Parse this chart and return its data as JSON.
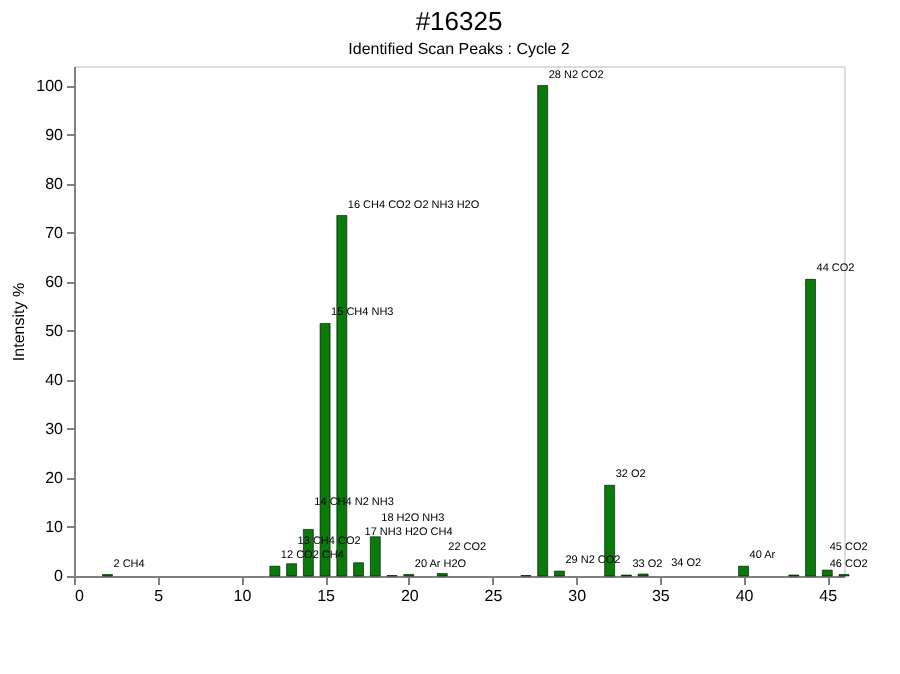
{
  "chart_data": {
    "type": "bar",
    "title": "#16325",
    "subtitle": "Identified Scan Peaks : Cycle 2",
    "ylabel": "Intensity %",
    "x": [
      2,
      12,
      13,
      14,
      15,
      16,
      17,
      18,
      19,
      20,
      22,
      27,
      28,
      29,
      32,
      33,
      34,
      40,
      43,
      44,
      45,
      46
    ],
    "series": [
      {
        "color": "#0a7a0a",
        "values": [
          0.3,
          2,
          2.5,
          9.5,
          51.5,
          73.5,
          2.7,
          8,
          0.1,
          0.3,
          0.5,
          0.1,
          100,
          1,
          18.5,
          0.2,
          0.4,
          2,
          0.2,
          60.5,
          1.2,
          0.3
        ]
      }
    ],
    "xlim": [
      0,
      46
    ],
    "ylim": [
      0,
      104
    ],
    "xticks": [
      0,
      5,
      10,
      15,
      20,
      25,
      30,
      35,
      40,
      45
    ],
    "yticks": [
      0,
      10,
      20,
      30,
      40,
      50,
      60,
      70,
      80,
      90,
      100
    ],
    "grid": false,
    "annotations": [
      {
        "text": "2 CH4",
        "x": 2,
        "y": 0.3
      },
      {
        "text": "12 CO2 CH4",
        "x": 12,
        "y": 2
      },
      {
        "text": "13 CH4 CO2",
        "x": 13,
        "y": 2.5
      },
      {
        "text": "14 CH4 N2 NH3",
        "x": 14,
        "y": 9.5
      },
      {
        "text": "15 CH4 NH3",
        "x": 15,
        "y": 51.5
      },
      {
        "text": "16 CH4 CO2 O2 NH3 H2O",
        "x": 16,
        "y": 73.5
      },
      {
        "text": "17 NH3 H2O CH4",
        "x": 17,
        "y": 2.7
      },
      {
        "text": "18 H2O NH3",
        "x": 18,
        "y": 8
      },
      {
        "text": "20 Ar H2O",
        "x": 20,
        "y": 0.3
      },
      {
        "text": "22 CO2",
        "x": 22,
        "y": 0.5
      },
      {
        "text": "28 N2 CO2",
        "x": 28,
        "y": 100
      },
      {
        "text": "29 N2 CO2",
        "x": 29,
        "y": 1
      },
      {
        "text": "32 O2",
        "x": 32,
        "y": 18.5
      },
      {
        "text": "33 O2",
        "x": 33,
        "y": 0.2
      },
      {
        "text": "34 O2",
        "x": 34,
        "y": 0.4
      },
      {
        "text": "40 Ar",
        "x": 40,
        "y": 2
      },
      {
        "text": "44 CO2",
        "x": 44,
        "y": 60.5
      },
      {
        "text": "45 CO2",
        "x": 45,
        "y": 1.2
      },
      {
        "text": "46 CO2",
        "x": 46,
        "y": 0.3
      }
    ]
  }
}
